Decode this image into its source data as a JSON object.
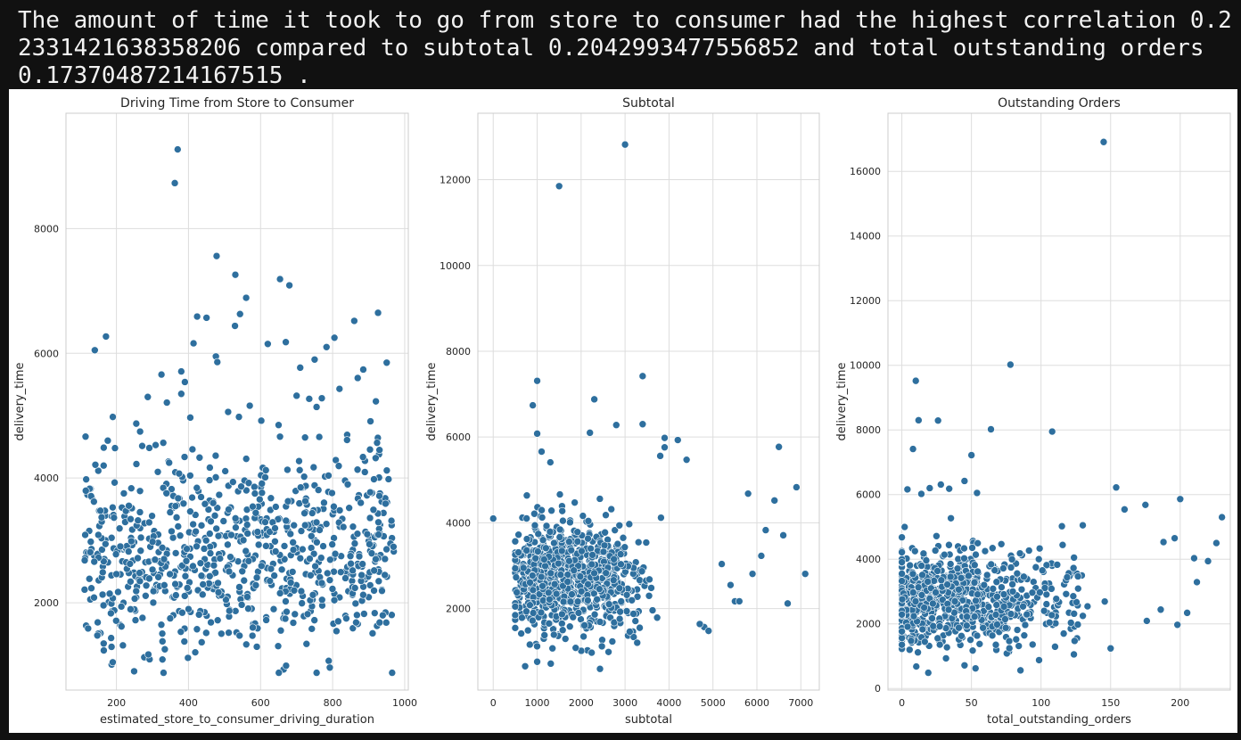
{
  "caption": "The amount of time it took to go from store to consumer had the highest correlation 0.22331421638358206 compared to subtotal 0.2042993477556852 and total outstanding orders 0.17370487214167515 .",
  "colors": {
    "background": "#111111",
    "figure": "#ffffff",
    "point": "#2e6f9e",
    "point_edge": "#ffffff",
    "grid": "#dddddd",
    "spine": "#cccccc",
    "text": "#262626"
  },
  "chart_data": [
    {
      "type": "scatter",
      "title": "Driving Time from Store to Consumer",
      "xlabel": "estimated_store_to_consumer_driving_duration",
      "ylabel": "delivery_time",
      "xlim": [
        60,
        1010
      ],
      "ylim": [
        600,
        9850
      ],
      "xticks": [
        200,
        400,
        600,
        800,
        1000
      ],
      "yticks": [
        2000,
        4000,
        6000,
        8000
      ],
      "grid": true,
      "points": [
        [
          370,
          9270
        ],
        [
          362,
          8730
        ],
        [
          478,
          7560
        ],
        [
          530,
          7260
        ],
        [
          654,
          7190
        ],
        [
          680,
          7090
        ],
        [
          560,
          6890
        ],
        [
          926,
          6650
        ],
        [
          424,
          6590
        ],
        [
          450,
          6570
        ],
        [
          543,
          6630
        ],
        [
          529,
          6440
        ],
        [
          171,
          6270
        ],
        [
          140,
          6050
        ],
        [
          414,
          6160
        ],
        [
          620,
          6150
        ],
        [
          670,
          6180
        ],
        [
          805,
          6250
        ],
        [
          783,
          6100
        ],
        [
          860,
          6520
        ],
        [
          885,
          5740
        ],
        [
          950,
          5850
        ],
        [
          325,
          5660
        ],
        [
          380,
          5710
        ],
        [
          476,
          5950
        ],
        [
          480,
          5860
        ],
        [
          390,
          5540
        ],
        [
          710,
          5770
        ],
        [
          750,
          5900
        ],
        [
          287,
          5300
        ],
        [
          190,
          4980
        ],
        [
          176,
          4600
        ],
        [
          196,
          4480
        ],
        [
          340,
          5210
        ],
        [
          380,
          5350
        ],
        [
          405,
          4970
        ],
        [
          510,
          5060
        ],
        [
          540,
          4980
        ],
        [
          570,
          5160
        ],
        [
          602,
          4920
        ],
        [
          650,
          4850
        ],
        [
          700,
          5320
        ],
        [
          735,
          5270
        ],
        [
          770,
          5280
        ],
        [
          819,
          5430
        ],
        [
          840,
          4610
        ],
        [
          905,
          4910
        ],
        [
          920,
          5230
        ],
        [
          930,
          4450
        ]
      ],
      "cloud": {
        "x_range": [
          110,
          970
        ],
        "y_center": 2700,
        "y_spread": 800,
        "count": 780,
        "seed": 11
      }
    },
    {
      "type": "scatter",
      "title": "Subtotal",
      "xlabel": "subtotal",
      "ylabel": "delivery_time",
      "xlim": [
        -350,
        7420
      ],
      "ylim": [
        100,
        13550
      ],
      "xticks": [
        0,
        1000,
        2000,
        3000,
        4000,
        5000,
        6000,
        7000
      ],
      "yticks": [
        2000,
        4000,
        6000,
        8000,
        10000,
        12000
      ],
      "grid": true,
      "points": [
        [
          3000,
          12820
        ],
        [
          1500,
          11850
        ],
        [
          3400,
          7420
        ],
        [
          1000,
          7310
        ],
        [
          900,
          6740
        ],
        [
          2300,
          6880
        ],
        [
          2800,
          6280
        ],
        [
          3400,
          6300
        ],
        [
          1000,
          6080
        ],
        [
          2200,
          6100
        ],
        [
          3900,
          5980
        ],
        [
          4200,
          5930
        ],
        [
          6500,
          5770
        ],
        [
          3900,
          5760
        ],
        [
          1100,
          5660
        ],
        [
          1300,
          5410
        ],
        [
          3800,
          5560
        ],
        [
          4400,
          5470
        ],
        [
          5800,
          4680
        ],
        [
          6900,
          4830
        ],
        [
          6400,
          4520
        ],
        [
          6200,
          3830
        ],
        [
          6600,
          3710
        ],
        [
          6100,
          3230
        ],
        [
          7100,
          2810
        ],
        [
          6700,
          2120
        ],
        [
          5900,
          2810
        ],
        [
          5500,
          2170
        ],
        [
          5600,
          2170
        ],
        [
          5400,
          2550
        ],
        [
          5200,
          3040
        ],
        [
          0,
          4100
        ],
        [
          4800,
          1570
        ],
        [
          4900,
          1480
        ],
        [
          4700,
          1640
        ],
        [
          1000,
          760
        ]
      ],
      "cloud": {
        "x_range": [
          500,
          4900
        ],
        "x_peak": 1800,
        "y_center": 2600,
        "y_spread": 680,
        "count": 780,
        "seed": 23
      }
    },
    {
      "type": "scatter",
      "title": "Outstanding Orders",
      "xlabel": "total_outstanding_orders",
      "ylabel": "delivery_time",
      "xlim": [
        -10,
        236
      ],
      "ylim": [
        -50,
        17800
      ],
      "xticks": [
        0,
        50,
        100,
        150,
        200
      ],
      "yticks": [
        0,
        2000,
        4000,
        6000,
        8000,
        10000,
        12000,
        14000,
        16000
      ],
      "grid": true,
      "points": [
        [
          145,
          16910
        ],
        [
          78,
          10020
        ],
        [
          10,
          9520
        ],
        [
          108,
          7950
        ],
        [
          12,
          8300
        ],
        [
          26,
          8290
        ],
        [
          64,
          8020
        ],
        [
          8,
          7410
        ],
        [
          50,
          7220
        ],
        [
          154,
          6220
        ],
        [
          200,
          5860
        ],
        [
          175,
          5680
        ],
        [
          160,
          5540
        ],
        [
          230,
          5300
        ],
        [
          130,
          5050
        ],
        [
          115,
          5020
        ],
        [
          54,
          6050
        ],
        [
          45,
          6420
        ],
        [
          28,
          6310
        ],
        [
          34,
          6180
        ],
        [
          20,
          6200
        ],
        [
          4,
          6160
        ],
        [
          14,
          6020
        ],
        [
          188,
          4530
        ],
        [
          196,
          4650
        ],
        [
          210,
          4030
        ],
        [
          226,
          4500
        ],
        [
          220,
          3940
        ],
        [
          212,
          3290
        ],
        [
          205,
          2340
        ],
        [
          198,
          1970
        ],
        [
          186,
          2440
        ],
        [
          176,
          2090
        ],
        [
          150,
          1240
        ]
      ],
      "cloud": {
        "x_range": [
          0,
          225
        ],
        "x_peak": 25,
        "y_center": 2700,
        "y_spread": 750,
        "count": 780,
        "seed": 37
      }
    }
  ]
}
